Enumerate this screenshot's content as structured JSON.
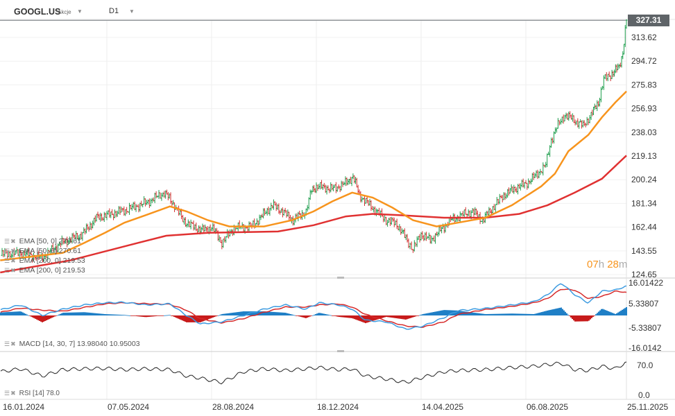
{
  "header": {
    "symbol": "GOOGL.US",
    "instrument_type": "Akcje",
    "timeframe": "D1"
  },
  "last_price": "327.31",
  "countdown": {
    "hours": "07",
    "h": "h",
    "minutes": "28",
    "m": "m"
  },
  "legend": {
    "ema50_a": "EMA [50,  0]  270.61",
    "ema50_b": "EMA [50,  0]  270.61",
    "ema200_a": "EMA [200,  0]  219.53",
    "ema200_b": "EMA [200,  0]  219.53",
    "macd": "MACD [14, 30, 7]  13.98040   10.95003",
    "rsi": "RSI [14]  78.0"
  },
  "colors": {
    "up": "#1a9c4a",
    "down": "#d32f2f",
    "ema50": "#f7941d",
    "ema200": "#e03131",
    "macd": "#3d9be0",
    "signal": "#d62a2a",
    "hist_pos": "#1f7fc6",
    "hist_neg": "#c71b1b",
    "rsi": "#222222"
  },
  "chart_data": [
    {
      "type": "ohlc",
      "price_axis_labels": [
        "313.62",
        "294.72",
        "275.83",
        "256.93",
        "238.03",
        "219.13",
        "200.24",
        "181.34",
        "162.44",
        "143.55",
        "124.65"
      ],
      "ylim": [
        124.65,
        327.31
      ],
      "x_tick_labels": [
        "16.01.2024",
        "07.05.2024",
        "28.08.2024",
        "18.12.2024",
        "14.04.2025",
        "06.08.2025",
        "25.11.2025"
      ],
      "close": [
        [
          "2024-01-14",
          140
        ],
        [
          "2024-01-16",
          141
        ],
        [
          "2024-02-05",
          142
        ],
        [
          "2024-02-27",
          138
        ],
        [
          "2024-03-20",
          150
        ],
        [
          "2024-04-11",
          157
        ],
        [
          "2024-04-26",
          170
        ],
        [
          "2024-05-07",
          172
        ],
        [
          "2024-05-27",
          176
        ],
        [
          "2024-06-19",
          182
        ],
        [
          "2024-07-08",
          190
        ],
        [
          "2024-07-19",
          180
        ],
        [
          "2024-07-28",
          168
        ],
        [
          "2024-08-10",
          162
        ],
        [
          "2024-08-21",
          160
        ],
        [
          "2024-08-28",
          163
        ],
        [
          "2024-09-08",
          150
        ],
        [
          "2024-09-21",
          162
        ],
        [
          "2024-10-10",
          163
        ],
        [
          "2024-11-01",
          180
        ],
        [
          "2024-11-12",
          175
        ],
        [
          "2024-11-23",
          168
        ],
        [
          "2024-12-07",
          175
        ],
        [
          "2024-12-13",
          192
        ],
        [
          "2024-12-18",
          195
        ],
        [
          "2025-01-06",
          193
        ],
        [
          "2025-01-21",
          198
        ],
        [
          "2025-01-28",
          203
        ],
        [
          "2025-02-04",
          188
        ],
        [
          "2025-02-23",
          175
        ],
        [
          "2025-03-06",
          168
        ],
        [
          "2025-03-18",
          165
        ],
        [
          "2025-03-31",
          150
        ],
        [
          "2025-04-05",
          145
        ],
        [
          "2025-04-14",
          157
        ],
        [
          "2025-04-24",
          152
        ],
        [
          "2025-05-05",
          160
        ],
        [
          "2025-05-16",
          168
        ],
        [
          "2025-05-28",
          172
        ],
        [
          "2025-06-09",
          175
        ],
        [
          "2025-06-20",
          168
        ],
        [
          "2025-07-01",
          178
        ],
        [
          "2025-07-13",
          188
        ],
        [
          "2025-07-24",
          193
        ],
        [
          "2025-08-06",
          197
        ],
        [
          "2025-08-16",
          203
        ],
        [
          "2025-08-28",
          212
        ],
        [
          "2025-09-03",
          232
        ],
        [
          "2025-09-09",
          242
        ],
        [
          "2025-09-18",
          252
        ],
        [
          "2025-09-28",
          248
        ],
        [
          "2025-10-08",
          243
        ],
        [
          "2025-10-17",
          252
        ],
        [
          "2025-10-25",
          262
        ],
        [
          "2025-10-31",
          280
        ],
        [
          "2025-11-09",
          285
        ],
        [
          "2025-11-17",
          290
        ],
        [
          "2025-11-21",
          302
        ],
        [
          "2025-11-25",
          327.31
        ]
      ],
      "ema50": [
        [
          "2024-01-14",
          136
        ],
        [
          "2024-02-28",
          140
        ],
        [
          "2024-03-21",
          142
        ],
        [
          "2024-04-13",
          150
        ],
        [
          "2024-05-05",
          158
        ],
        [
          "2024-05-26",
          166
        ],
        [
          "2024-06-18",
          172
        ],
        [
          "2024-07-14",
          179
        ],
        [
          "2024-08-01",
          175
        ],
        [
          "2024-08-24",
          168
        ],
        [
          "2024-09-16",
          163
        ],
        [
          "2024-10-23",
          163
        ],
        [
          "2024-11-22",
          168
        ],
        [
          "2024-12-15",
          175
        ],
        [
          "2025-01-05",
          183
        ],
        [
          "2025-01-27",
          190
        ],
        [
          "2025-02-19",
          186
        ],
        [
          "2025-03-13",
          178
        ],
        [
          "2025-04-05",
          168
        ],
        [
          "2025-05-01",
          163
        ],
        [
          "2025-05-24",
          166
        ],
        [
          "2025-06-23",
          170
        ],
        [
          "2025-07-22",
          180
        ],
        [
          "2025-08-23",
          195
        ],
        [
          "2025-09-07",
          205
        ],
        [
          "2025-09-22",
          223
        ],
        [
          "2025-10-14",
          236
        ],
        [
          "2025-10-29",
          250
        ],
        [
          "2025-11-13",
          262
        ],
        [
          "2025-11-25",
          270.61
        ]
      ],
      "ema200": [
        [
          "2024-01-14",
          126.3
        ],
        [
          "2024-03-29",
          136
        ],
        [
          "2024-06-10",
          150
        ],
        [
          "2024-07-10",
          155.6
        ],
        [
          "2024-08-24",
          158
        ],
        [
          "2024-11-07",
          159
        ],
        [
          "2024-12-15",
          164
        ],
        [
          "2025-01-20",
          171
        ],
        [
          "2025-02-19",
          173
        ],
        [
          "2025-03-20",
          172
        ],
        [
          "2025-05-09",
          170
        ],
        [
          "2025-06-23",
          170
        ],
        [
          "2025-07-30",
          173
        ],
        [
          "2025-08-30",
          180
        ],
        [
          "2025-09-29",
          190
        ],
        [
          "2025-10-29",
          201
        ],
        [
          "2025-11-25",
          219.53
        ]
      ]
    },
    {
      "type": "macd",
      "axis_labels": [
        "16.01422",
        "5.33807",
        "-5.33807",
        "-16.0142"
      ],
      "ylim": [
        -16.0142,
        16.01422
      ],
      "dates": [
        "2024-01-14",
        "2024-02-05",
        "2024-02-28",
        "2024-03-21",
        "2024-04-13",
        "2024-05-05",
        "2024-05-26",
        "2024-06-18",
        "2024-07-14",
        "2024-08-01",
        "2024-08-16",
        "2024-09-08",
        "2024-10-01",
        "2024-10-23",
        "2024-11-15",
        "2024-12-07",
        "2024-12-21",
        "2025-01-12",
        "2025-01-27",
        "2025-02-11",
        "2025-03-06",
        "2025-03-28",
        "2025-04-16",
        "2025-05-09",
        "2025-05-24",
        "2025-06-23",
        "2025-07-22",
        "2025-08-15",
        "2025-08-30",
        "2025-09-14",
        "2025-09-29",
        "2025-10-14",
        "2025-10-29",
        "2025-11-13",
        "2025-11-25"
      ],
      "macd": [
        2.6,
        5,
        0,
        3,
        5,
        6,
        6.2,
        5,
        5.5,
        0,
        -4,
        -3,
        0,
        3,
        5,
        3,
        6,
        5,
        3,
        -2.3,
        -3,
        -6.5,
        -5,
        -1,
        2.3,
        3.3,
        5,
        6.5,
        9.8,
        15.4,
        9.8,
        5.9,
        11.5,
        12,
        13.98
      ],
      "signal": [
        1.5,
        3.5,
        2.5,
        2,
        3.8,
        5.5,
        6,
        5.6,
        5.3,
        2.5,
        -1.5,
        -3.5,
        -1.5,
        1.5,
        4,
        4,
        5,
        5.5,
        4,
        0.5,
        -2.5,
        -5,
        -5.5,
        -3,
        0.5,
        2.8,
        4.3,
        6,
        8,
        12.5,
        12,
        8,
        9,
        11.5,
        10.95
      ]
    },
    {
      "type": "line",
      "name": "RSI [14]",
      "axis_labels": [
        "70.0",
        "0.0"
      ],
      "ylim": [
        0,
        100
      ],
      "dates": [
        "2024-01-14",
        "2024-02-05",
        "2024-02-28",
        "2024-03-21",
        "2024-04-13",
        "2024-05-05",
        "2024-05-26",
        "2024-06-18",
        "2024-07-14",
        "2024-08-01",
        "2024-08-16",
        "2024-09-08",
        "2024-10-01",
        "2024-10-23",
        "2024-11-15",
        "2024-12-07",
        "2024-12-21",
        "2025-01-12",
        "2025-01-27",
        "2025-02-11",
        "2025-03-06",
        "2025-03-28",
        "2025-04-16",
        "2025-05-09",
        "2025-05-24",
        "2025-06-23",
        "2025-07-22",
        "2025-08-15",
        "2025-08-30",
        "2025-09-14",
        "2025-09-29",
        "2025-10-14",
        "2025-10-29",
        "2025-11-13",
        "2025-11-25"
      ],
      "values": [
        55,
        62,
        45,
        60,
        62,
        63,
        60,
        62,
        60,
        45,
        40,
        30,
        55,
        62,
        58,
        62,
        65,
        60,
        62,
        45,
        38,
        30,
        42,
        55,
        58,
        60,
        65,
        68,
        72,
        75,
        60,
        58,
        68,
        62,
        78
      ]
    }
  ]
}
